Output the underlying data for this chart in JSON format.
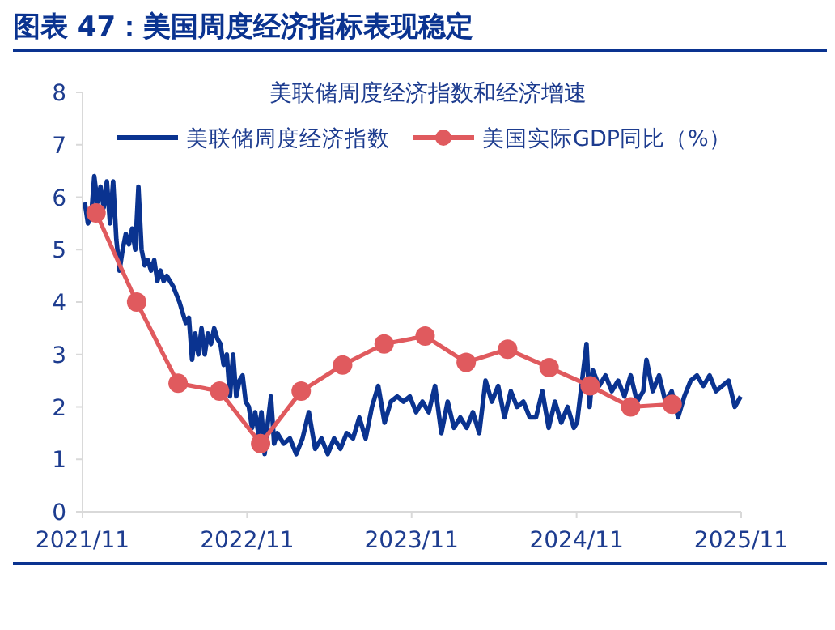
{
  "chart_data": {
    "type": "line",
    "title": "图表 47：美国周度经济指标表现稳定",
    "subtitle": "美联储周度经济指数和经济增速",
    "xlim": [
      "2021-11",
      "2025-11"
    ],
    "xticks": [
      {
        "value": "2021-11",
        "label": "2021/11"
      },
      {
        "value": "2022-11",
        "label": "2022/11"
      },
      {
        "value": "2023-11",
        "label": "2023/11"
      },
      {
        "value": "2024-11",
        "label": "2024/11"
      },
      {
        "value": "2025-11",
        "label": "2025/11"
      }
    ],
    "ylim": [
      0,
      8
    ],
    "yticks": [
      0,
      1,
      2,
      3,
      4,
      5,
      6,
      7,
      8
    ],
    "grid": false,
    "legend": "top",
    "series": [
      {
        "name": "美联储周度经济指数",
        "color": "#0a3390",
        "marker": "none",
        "x": [
          "2021-11-06",
          "2021-11-13",
          "2021-11-20",
          "2021-11-27",
          "2021-12-04",
          "2021-12-11",
          "2021-12-18",
          "2021-12-25",
          "2022-01-01",
          "2022-01-08",
          "2022-01-15",
          "2022-01-22",
          "2022-01-29",
          "2022-02-05",
          "2022-02-12",
          "2022-02-19",
          "2022-02-26",
          "2022-03-05",
          "2022-03-12",
          "2022-03-19",
          "2022-03-26",
          "2022-04-02",
          "2022-04-09",
          "2022-04-16",
          "2022-04-23",
          "2022-04-30",
          "2022-05-07",
          "2022-05-21",
          "2022-06-04",
          "2022-06-18",
          "2022-06-25",
          "2022-07-02",
          "2022-07-09",
          "2022-07-16",
          "2022-07-23",
          "2022-07-30",
          "2022-08-06",
          "2022-08-13",
          "2022-08-20",
          "2022-08-27",
          "2022-09-03",
          "2022-09-10",
          "2022-09-17",
          "2022-09-24",
          "2022-10-01",
          "2022-10-08",
          "2022-10-15",
          "2022-10-22",
          "2022-10-29",
          "2022-11-05",
          "2022-11-12",
          "2022-11-19",
          "2022-11-26",
          "2022-12-03",
          "2022-12-10",
          "2022-12-17",
          "2022-12-24",
          "2022-12-31",
          "2023-01-07",
          "2023-01-21",
          "2023-02-04",
          "2023-02-18",
          "2023-03-04",
          "2023-03-18",
          "2023-04-01",
          "2023-04-15",
          "2023-04-29",
          "2023-05-13",
          "2023-05-27",
          "2023-06-10",
          "2023-06-24",
          "2023-07-08",
          "2023-07-22",
          "2023-08-05",
          "2023-08-19",
          "2023-09-02",
          "2023-09-16",
          "2023-09-30",
          "2023-10-14",
          "2023-10-28",
          "2023-11-11",
          "2023-11-25",
          "2023-12-09",
          "2023-12-23",
          "2024-01-06",
          "2024-01-20",
          "2024-02-03",
          "2024-02-17",
          "2024-03-02",
          "2024-03-16",
          "2024-03-30",
          "2024-04-13",
          "2024-04-27",
          "2024-05-11",
          "2024-05-25",
          "2024-06-08",
          "2024-06-22",
          "2024-07-06",
          "2024-07-20",
          "2024-08-03",
          "2024-08-17",
          "2024-08-31",
          "2024-09-14",
          "2024-09-28",
          "2024-10-12",
          "2024-10-26",
          "2024-11-02",
          "2024-11-23",
          "2024-11-30",
          "2024-12-07",
          "2024-12-21",
          "2025-01-04",
          "2025-01-18",
          "2025-02-01",
          "2025-02-15",
          "2025-03-01",
          "2025-03-15",
          "2025-03-29",
          "2025-04-05",
          "2025-04-19",
          "2025-05-03",
          "2025-05-17",
          "2025-05-31",
          "2025-06-14",
          "2025-06-28",
          "2025-07-12",
          "2025-07-26",
          "2025-08-09",
          "2025-08-23",
          "2025-09-06",
          "2025-09-20",
          "2025-10-04",
          "2025-10-18",
          "2025-10-31"
        ],
        "values": [
          5.9,
          5.5,
          5.6,
          6.4,
          5.9,
          6.2,
          5.8,
          6.3,
          5.5,
          6.3,
          5.2,
          4.6,
          5.0,
          5.3,
          5.1,
          5.4,
          5.0,
          6.2,
          5.0,
          4.7,
          4.8,
          4.6,
          4.8,
          4.4,
          4.6,
          4.4,
          4.5,
          4.3,
          4.0,
          3.6,
          3.7,
          2.9,
          3.4,
          3.0,
          3.5,
          3.0,
          3.4,
          3.2,
          3.5,
          3.3,
          3.2,
          2.8,
          3.0,
          2.2,
          3.0,
          2.2,
          2.5,
          2.6,
          2.1,
          2.0,
          1.6,
          1.9,
          1.5,
          1.9,
          1.1,
          1.7,
          2.2,
          1.3,
          1.5,
          1.3,
          1.4,
          1.1,
          1.4,
          1.9,
          1.2,
          1.4,
          1.1,
          1.4,
          1.2,
          1.5,
          1.4,
          1.8,
          1.4,
          2.0,
          2.4,
          1.7,
          2.1,
          2.2,
          2.1,
          2.2,
          1.9,
          2.1,
          1.9,
          2.4,
          1.5,
          2.1,
          1.6,
          1.8,
          1.6,
          1.9,
          1.5,
          2.5,
          2.1,
          2.4,
          1.8,
          2.3,
          2.0,
          2.1,
          1.8,
          1.8,
          2.3,
          1.6,
          2.1,
          1.7,
          2.0,
          1.6,
          1.7,
          3.2,
          2.0,
          2.7,
          2.4,
          2.6,
          2.3,
          2.5,
          2.2,
          2.6,
          2.1,
          2.3,
          2.9,
          2.3,
          2.6,
          2.1,
          2.3,
          1.8,
          2.2,
          2.5,
          2.6,
          2.4,
          2.6,
          2.3,
          2.4,
          2.5,
          2.0,
          2.2
        ]
      },
      {
        "name": "美国实际GDP同比（%）",
        "color": "#e05a5e",
        "marker": "circle",
        "x": [
          "2021-12",
          "2022-03",
          "2022-06",
          "2022-09",
          "2022-12",
          "2023-03",
          "2023-06",
          "2023-09",
          "2023-12",
          "2024-03",
          "2024-06",
          "2024-09",
          "2024-12",
          "2025-03",
          "2025-06"
        ],
        "values": [
          5.7,
          4.0,
          2.45,
          2.3,
          1.3,
          2.3,
          2.8,
          3.2,
          3.35,
          2.85,
          3.1,
          2.75,
          2.4,
          2.0,
          2.05
        ]
      }
    ]
  }
}
